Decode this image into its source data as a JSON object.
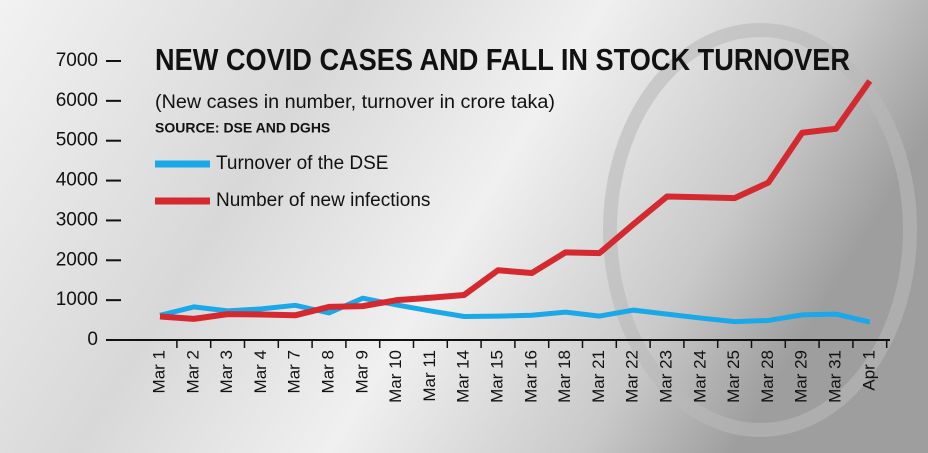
{
  "chart_data": {
    "type": "line",
    "title": "NEW COVID CASES AND FALL IN STOCK TURNOVER",
    "subtitle": "(New cases in number, turnover in crore taka)",
    "source": "SOURCE: DSE AND DGHS",
    "categories": [
      "Mar 1",
      "Mar 2",
      "Mar 3",
      "Mar 4",
      "Mar 7",
      "Mar 8",
      "Mar 9",
      "Mar 10",
      "Mar 11",
      "Mar 14",
      "Mar 15",
      "Mar 16",
      "Mar 18",
      "Mar 21",
      "Mar 22",
      "Mar 23",
      "Mar 24",
      "Mar 25",
      "Mar 28",
      "Mar 29",
      "Mar 31",
      "Apr 1"
    ],
    "series": [
      {
        "name": "Turnover of the DSE",
        "color": "#1aa8e8",
        "values": [
          620,
          830,
          730,
          780,
          870,
          680,
          1050,
          880,
          730,
          590,
          600,
          620,
          700,
          600,
          750,
          650,
          550,
          460,
          490,
          630,
          650,
          450
        ]
      },
      {
        "name": "Number of new infections",
        "color": "#d42a2f",
        "values": [
          590,
          530,
          650,
          640,
          620,
          830,
          850,
          1000,
          1060,
          1130,
          1750,
          1680,
          2200,
          2180,
          2900,
          3600,
          3580,
          3560,
          3950,
          5200,
          5300,
          6500
        ]
      }
    ],
    "ylim": [
      0,
      7000
    ],
    "yticks": [
      0,
      1000,
      2000,
      3000,
      4000,
      5000,
      6000,
      7000
    ]
  }
}
